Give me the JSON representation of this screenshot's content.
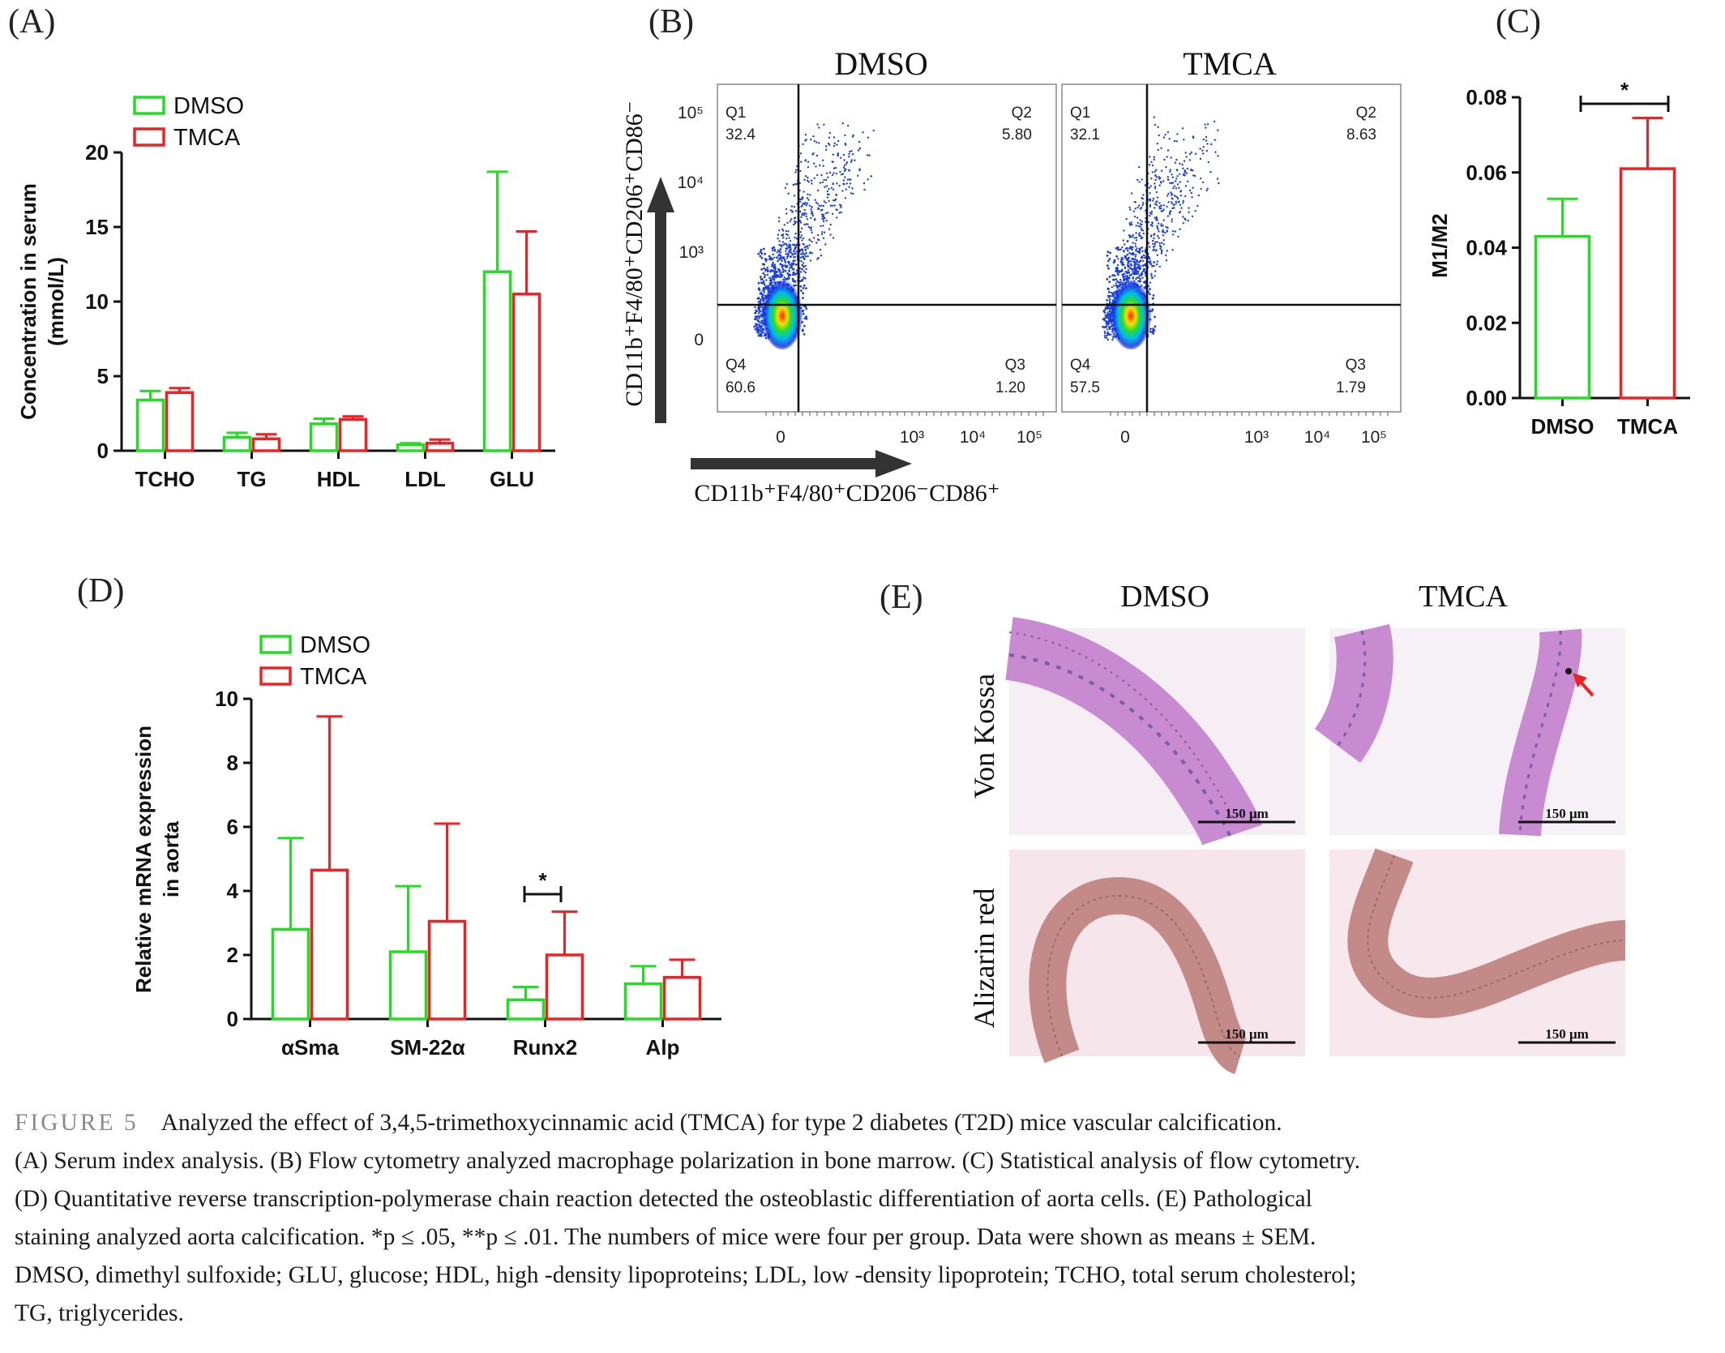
{
  "panels": {
    "A": {
      "label": "(A)",
      "chart_data": {
        "type": "bar",
        "categories": [
          "TCHO",
          "TG",
          "HDL",
          "LDL",
          "GLU"
        ],
        "series": [
          {
            "name": "DMSO",
            "color": "#22dd22",
            "values": [
              3.4,
              0.9,
              1.8,
              0.4,
              12.0
            ],
            "errors": [
              0.6,
              0.3,
              0.35,
              0.1,
              6.7
            ]
          },
          {
            "name": "TMCA",
            "color": "#ee2222",
            "values": [
              3.9,
              0.8,
              2.1,
              0.5,
              10.5
            ],
            "errors": [
              0.3,
              0.3,
              0.2,
              0.25,
              4.2
            ]
          }
        ],
        "ylabel": "Concentration in serum",
        "ylabel2": "(mmol/L)",
        "ylim": [
          0,
          20
        ],
        "yticks": [
          0,
          5,
          10,
          15,
          20
        ],
        "legend_position": "top-left"
      }
    },
    "B": {
      "label": "(B)",
      "plots": [
        {
          "title": "DMSO",
          "q1_label": "Q1",
          "q1": "32.4",
          "q2_label": "Q2",
          "q2": "5.80",
          "q3_label": "Q3",
          "q3": "1.20",
          "q4_label": "Q4",
          "q4": "60.6"
        },
        {
          "title": "TMCA",
          "q1_label": "Q1",
          "q1": "32.1",
          "q2_label": "Q2",
          "q2": "8.63",
          "q3_label": "Q3",
          "q3": "1.79",
          "q4_label": "Q4",
          "q4": "57.5"
        }
      ],
      "y_ticks": [
        "10⁵",
        "10⁴",
        "10³",
        "0"
      ],
      "x_ticks": [
        "0",
        "10³",
        "10⁴",
        "10⁵"
      ],
      "y_axis_label": "CD11b⁺F4/80⁺CD206⁺CD86⁻",
      "x_axis_label": "CD11b⁺F4/80⁺CD206⁻CD86⁺"
    },
    "C": {
      "label": "(C)",
      "chart_data": {
        "type": "bar",
        "categories": [
          "DMSO",
          "TMCA"
        ],
        "values": [
          0.043,
          0.061
        ],
        "errors": [
          0.01,
          0.0135
        ],
        "colors": [
          "#22dd22",
          "#ee2222"
        ],
        "ylabel": "M1/M2",
        "ylim": [
          0,
          0.08
        ],
        "yticks": [
          "0.00",
          "0.02",
          "0.04",
          "0.06",
          "0.08"
        ],
        "significance": "*"
      }
    },
    "D": {
      "label": "(D)",
      "chart_data": {
        "type": "bar",
        "categories": [
          "αSma",
          "SM-22α",
          "Runx2",
          "Alp"
        ],
        "series": [
          {
            "name": "DMSO",
            "color": "#22dd22",
            "values": [
              2.8,
              2.1,
              0.6,
              1.1
            ],
            "errors": [
              2.85,
              2.05,
              0.4,
              0.55
            ]
          },
          {
            "name": "TMCA",
            "color": "#ee2222",
            "values": [
              4.65,
              3.05,
              2.0,
              1.3
            ],
            "errors": [
              4.8,
              3.05,
              1.35,
              0.55
            ]
          }
        ],
        "ylabel": "Relative mRNA expression",
        "ylabel2": "in aorta",
        "ylim": [
          0,
          10
        ],
        "yticks": [
          0,
          2,
          4,
          6,
          8,
          10
        ],
        "significance": "*",
        "legend_position": "top-left"
      }
    },
    "E": {
      "label": "(E)",
      "col_titles": [
        "DMSO",
        "TMCA"
      ],
      "row_titles": [
        "Von Kossa",
        "Alizarin red"
      ],
      "scalebar": "150 μm"
    }
  },
  "caption": {
    "figure_label": "FIGURE 5",
    "lines": [
      "Analyzed the effect of 3,4,5-trimethoxycinnamic acid (TMCA) for type 2 diabetes (T2D) mice vascular calcification.",
      "(A) Serum index analysis. (B) Flow cytometry analyzed macrophage polarization in bone marrow. (C) Statistical analysis of flow cytometry.",
      "(D) Quantitative reverse transcription-polymerase chain reaction detected the osteoblastic differentiation of aorta cells. (E) Pathological",
      "staining analyzed aorta calcification. *p ≤ .05, **p ≤ .01. The numbers of mice were four per group. Data were shown as means ± SEM.",
      "DMSO, dimethyl sulfoxide; GLU, glucose; HDL, high -density lipoproteins; LDL, low -density lipoprotein; TCHO, total serum cholesterol;",
      "TG, triglycerides."
    ]
  }
}
